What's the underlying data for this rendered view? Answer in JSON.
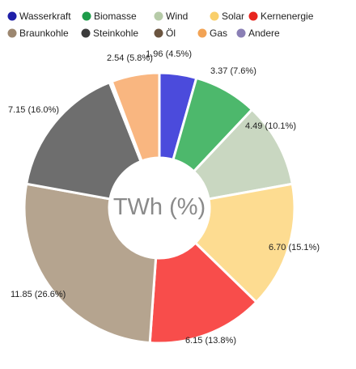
{
  "chart_data": {
    "type": "pie",
    "style": "donut",
    "center_label": "TWh (%)",
    "legend_position": "top",
    "legend": [
      {
        "name": "Wasserkraft",
        "color": "#1f1fa8"
      },
      {
        "name": "Biomasse",
        "color": "#1e9c4a"
      },
      {
        "name": "Wind",
        "color": "#b6cba8"
      },
      {
        "name": "Solar",
        "color": "#f9cf6b"
      },
      {
        "name": "Kernenergie",
        "color": "#e8251f"
      },
      {
        "name": "Braunkohle",
        "color": "#9c8770"
      },
      {
        "name": "Steinkohle",
        "color": "#3c3c3c"
      },
      {
        "name": "Öl",
        "color": "#6b5540"
      },
      {
        "name": "Gas",
        "color": "#f2a355"
      },
      {
        "name": "Andere",
        "color": "#8a7fb5"
      }
    ],
    "slices": [
      {
        "name": "Wasserkraft",
        "value": 1.96,
        "percent": 4.5,
        "label": "1.96 (4.5%)",
        "color": "#4b4bdc"
      },
      {
        "name": "Biomasse",
        "value": 3.37,
        "percent": 7.6,
        "label": "3.37 (7.6%)",
        "color": "#4db86c"
      },
      {
        "name": "Wind",
        "value": 4.49,
        "percent": 10.1,
        "label": "4.49 (10.1%)",
        "color": "#c9d7c1"
      },
      {
        "name": "Solar",
        "value": 6.7,
        "percent": 15.1,
        "label": "6.70 (15.1%)",
        "color": "#fddc91"
      },
      {
        "name": "Kernenergie",
        "value": 6.15,
        "percent": 13.8,
        "label": "6.15 (13.8%)",
        "color": "#f84d4b"
      },
      {
        "name": "Braunkohle",
        "value": 11.85,
        "percent": 26.6,
        "label": "11.85 (26.6%)",
        "color": "#b5a48f"
      },
      {
        "name": "Steinkohle",
        "value": 7.15,
        "percent": 16.0,
        "label": "7.15 (16.0%)",
        "color": "#6e6e6e"
      },
      {
        "name": "Öl",
        "value": 0.13,
        "percent": 0.3,
        "label": "",
        "color": "#8a7260"
      },
      {
        "name": "Gas",
        "value": 2.54,
        "percent": 5.8,
        "label": "2.54 (5.8%)",
        "color": "#f9b680"
      }
    ]
  }
}
